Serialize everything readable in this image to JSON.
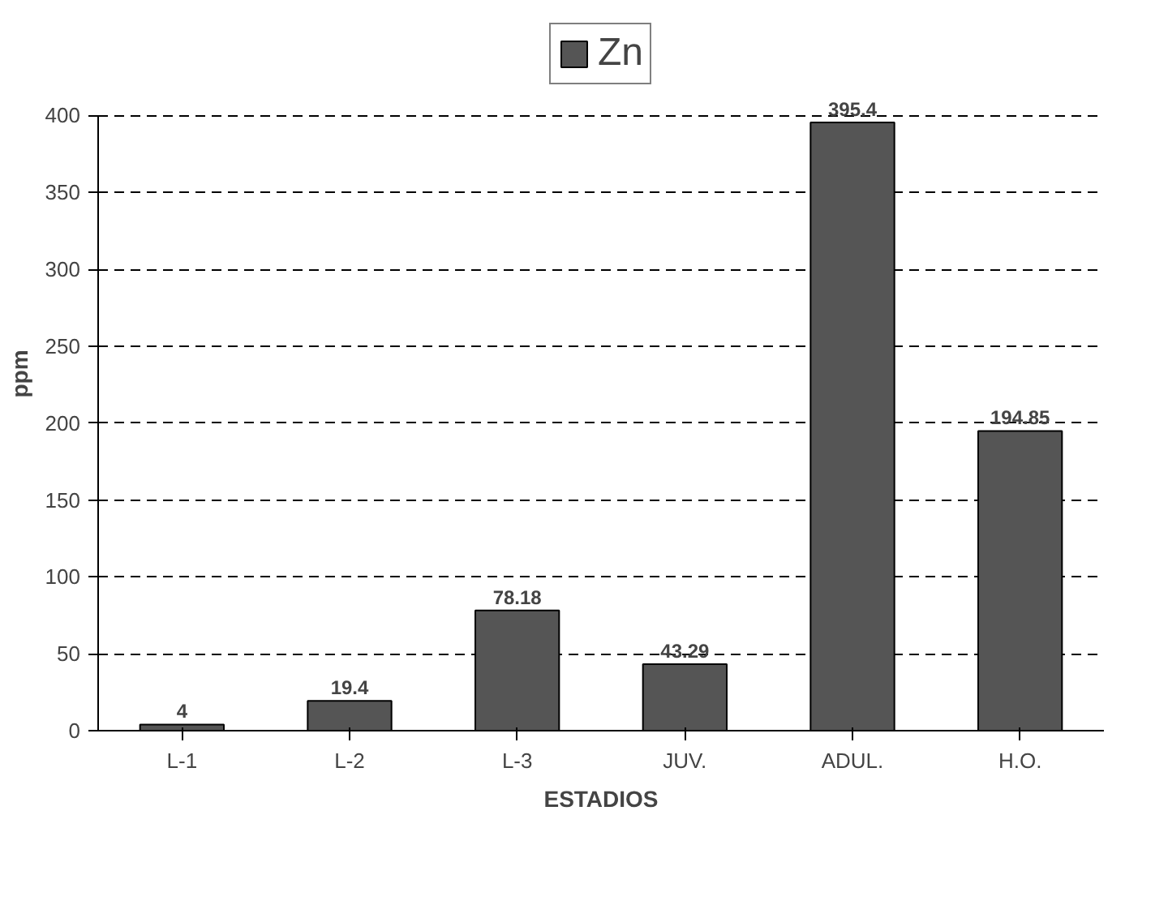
{
  "chart_data": {
    "type": "bar",
    "xlabel": "ESTADIOS",
    "ylabel": "ppm",
    "categories": [
      "L-1",
      "L-2",
      "L-3",
      "JUV.",
      "ADUL.",
      "H.O."
    ],
    "series": [
      {
        "name": "Zn",
        "color": "#555555",
        "values": [
          4,
          19.4,
          78.18,
          43.29,
          395.4,
          194.85
        ]
      }
    ],
    "ylim": [
      0,
      400
    ],
    "yticks": [
      0,
      50,
      100,
      150,
      200,
      250,
      300,
      350,
      400
    ],
    "grid": "y",
    "legend": "top",
    "data_labels": true
  }
}
